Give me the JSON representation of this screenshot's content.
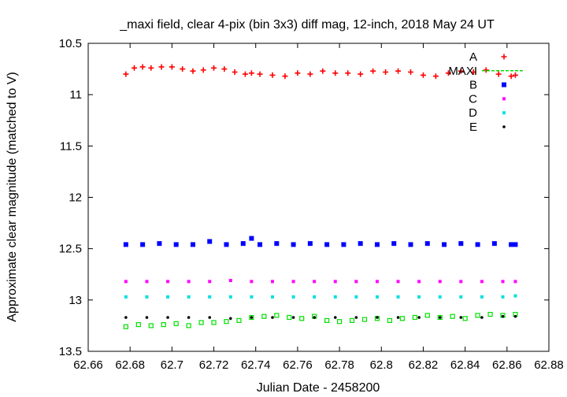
{
  "chart_data": {
    "type": "scatter",
    "title": "_maxi field, clear 4-pix (bin 3x3) diff mag, 12-inch, 2018 May 24 UT",
    "xlabel": "Julian Date - 2458200",
    "ylabel": "Approximate clear magnitude (matched to V)",
    "xlim": [
      62.66,
      62.88
    ],
    "ylim": [
      10.5,
      13.5
    ],
    "y_inverted": true,
    "grid": false,
    "legend_position": "top-right",
    "x_ticks": [
      {
        "value": 62.66,
        "label": "62.66"
      },
      {
        "value": 62.68,
        "label": "62.68"
      },
      {
        "value": 62.7,
        "label": "62.7"
      },
      {
        "value": 62.72,
        "label": "62.72"
      },
      {
        "value": 62.74,
        "label": "62.74"
      },
      {
        "value": 62.76,
        "label": "62.76"
      },
      {
        "value": 62.78,
        "label": "62.78"
      },
      {
        "value": 62.8,
        "label": "62.8"
      },
      {
        "value": 62.82,
        "label": "62.82"
      },
      {
        "value": 62.84,
        "label": "62.84"
      },
      {
        "value": 62.86,
        "label": "62.86"
      },
      {
        "value": 62.88,
        "label": "62.88"
      }
    ],
    "y_ticks": [
      {
        "value": 10.5,
        "label": "10.5"
      },
      {
        "value": 11.0,
        "label": "11"
      },
      {
        "value": 11.5,
        "label": "11.5"
      },
      {
        "value": 12.0,
        "label": "12"
      },
      {
        "value": 12.5,
        "label": "12.5"
      },
      {
        "value": 13.0,
        "label": "13"
      },
      {
        "value": 13.5,
        "label": "13.5"
      }
    ],
    "series": [
      {
        "name": "A",
        "color": "#ff0000",
        "marker": "plus",
        "x": [
          62.678,
          62.682,
          62.686,
          62.69,
          62.695,
          62.7,
          62.705,
          62.71,
          62.715,
          62.72,
          62.725,
          62.73,
          62.735,
          62.738,
          62.742,
          62.748,
          62.754,
          62.76,
          62.766,
          62.772,
          62.778,
          62.784,
          62.79,
          62.796,
          62.802,
          62.808,
          62.814,
          62.82,
          62.826,
          62.832,
          62.838,
          62.844,
          62.85,
          62.856,
          62.862,
          62.864
        ],
        "y": [
          10.8,
          10.74,
          10.73,
          10.74,
          10.73,
          10.73,
          10.75,
          10.77,
          10.76,
          10.74,
          10.75,
          10.78,
          10.8,
          10.79,
          10.8,
          10.81,
          10.82,
          10.79,
          10.8,
          10.77,
          10.79,
          10.79,
          10.8,
          10.77,
          10.78,
          10.77,
          10.78,
          10.81,
          10.82,
          10.79,
          10.77,
          10.78,
          10.76,
          10.8,
          10.82,
          10.81
        ]
      },
      {
        "name": "MAXI",
        "color": "#00e000",
        "marker": "square",
        "x": [
          62.678,
          62.684,
          62.69,
          62.696,
          62.702,
          62.708,
          62.714,
          62.72,
          62.726,
          62.732,
          62.738,
          62.744,
          62.75,
          62.756,
          62.762,
          62.768,
          62.774,
          62.78,
          62.786,
          62.792,
          62.798,
          62.804,
          62.81,
          62.816,
          62.822,
          62.828,
          62.834,
          62.84,
          62.846,
          62.852,
          62.858,
          62.864
        ],
        "y": [
          13.26,
          13.24,
          13.25,
          13.24,
          13.23,
          13.25,
          13.22,
          13.22,
          13.21,
          13.2,
          13.17,
          13.16,
          13.15,
          13.17,
          13.18,
          13.16,
          13.2,
          13.21,
          13.2,
          13.19,
          13.18,
          13.2,
          13.18,
          13.17,
          13.15,
          13.17,
          13.16,
          13.18,
          13.15,
          13.14,
          13.15,
          13.14
        ]
      },
      {
        "name": "B",
        "color": "#0000ff",
        "marker": "filled-square",
        "x": [
          62.678,
          62.686,
          62.694,
          62.702,
          62.71,
          62.718,
          62.726,
          62.734,
          62.738,
          62.742,
          62.75,
          62.758,
          62.766,
          62.774,
          62.782,
          62.79,
          62.798,
          62.806,
          62.814,
          62.822,
          62.83,
          62.838,
          62.846,
          62.854,
          62.862,
          62.864
        ],
        "y": [
          12.46,
          12.46,
          12.45,
          12.46,
          12.46,
          12.43,
          12.46,
          12.45,
          12.4,
          12.46,
          12.45,
          12.46,
          12.45,
          12.46,
          12.46,
          12.45,
          12.46,
          12.45,
          12.46,
          12.45,
          12.46,
          12.45,
          12.46,
          12.45,
          12.46,
          12.46
        ]
      },
      {
        "name": "C",
        "color": "#ff00ff",
        "marker": "small-square",
        "x": [
          62.678,
          62.688,
          62.698,
          62.708,
          62.718,
          62.728,
          62.738,
          62.748,
          62.758,
          62.768,
          62.778,
          62.788,
          62.798,
          62.808,
          62.818,
          62.828,
          62.838,
          62.848,
          62.858,
          62.864
        ],
        "y": [
          12.82,
          12.82,
          12.82,
          12.82,
          12.82,
          12.81,
          12.82,
          12.82,
          12.82,
          12.82,
          12.82,
          12.82,
          12.82,
          12.82,
          12.82,
          12.82,
          12.82,
          12.82,
          12.82,
          12.82
        ]
      },
      {
        "name": "D",
        "color": "#00e0e0",
        "marker": "small-square",
        "x": [
          62.678,
          62.688,
          62.698,
          62.708,
          62.718,
          62.728,
          62.738,
          62.748,
          62.758,
          62.768,
          62.778,
          62.788,
          62.798,
          62.808,
          62.818,
          62.828,
          62.838,
          62.848,
          62.858,
          62.864
        ],
        "y": [
          12.97,
          12.97,
          12.97,
          12.97,
          12.97,
          12.97,
          12.97,
          12.97,
          12.97,
          12.97,
          12.97,
          12.97,
          12.97,
          12.97,
          12.97,
          12.97,
          12.97,
          12.97,
          12.97,
          12.96
        ]
      },
      {
        "name": "E",
        "color": "#000000",
        "marker": "dot",
        "x": [
          62.678,
          62.688,
          62.698,
          62.708,
          62.718,
          62.728,
          62.738,
          62.748,
          62.758,
          62.768,
          62.778,
          62.788,
          62.798,
          62.808,
          62.818,
          62.828,
          62.838,
          62.848,
          62.858,
          62.864
        ],
        "y": [
          13.17,
          13.17,
          13.17,
          13.17,
          13.17,
          13.18,
          13.17,
          13.17,
          13.17,
          13.17,
          13.17,
          13.17,
          13.17,
          13.17,
          13.17,
          13.17,
          13.17,
          13.17,
          13.16,
          13.16
        ]
      }
    ]
  }
}
